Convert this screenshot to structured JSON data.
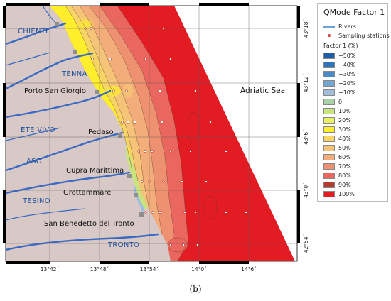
{
  "legend": {
    "title": "QMode Factor 1",
    "rivers_label": "Rivers",
    "stations_label": "Sampling stations",
    "factor_label": "Factor 1 (%)",
    "classes": [
      {
        "label": "−50%",
        "color": "#1f5da8"
      },
      {
        "label": "−40%",
        "color": "#2d74b8"
      },
      {
        "label": "−30%",
        "color": "#4a8ac6"
      },
      {
        "label": "−20%",
        "color": "#74a6d2"
      },
      {
        "label": "−10%",
        "color": "#9fbedc"
      },
      {
        "label": "0",
        "color": "#a7d1a9"
      },
      {
        "label": "10%",
        "color": "#c9e37f"
      },
      {
        "label": "20%",
        "color": "#e9f062"
      },
      {
        "label": "30%",
        "color": "#ffee2c"
      },
      {
        "label": "40%",
        "color": "#f7d466"
      },
      {
        "label": "50%",
        "color": "#f6c478"
      },
      {
        "label": "60%",
        "color": "#f3ad7a"
      },
      {
        "label": "70%",
        "color": "#ee9171"
      },
      {
        "label": "80%",
        "color": "#ea6760"
      },
      {
        "label": "90%",
        "color": "#b13d31"
      },
      {
        "label": "100%",
        "color": "#e31c24"
      }
    ]
  },
  "map": {
    "land_color": "#d8c9c6",
    "river_color": "#3a6ac4",
    "sea_label": "Adriatic Sea",
    "rivers": [
      "CHIENTI",
      "TENNA",
      "ETE VIVO",
      "ASO",
      "TESINO",
      "TRONTO"
    ],
    "towns": [
      "Porto San Giorgio",
      "Pedaso",
      "Cupra Marittima",
      "Grottammare",
      "San Benedetto del Tronto"
    ],
    "lon_ticks": [
      "13°42´",
      "13°48´",
      "13°54´",
      "14°0´",
      "14°6´"
    ],
    "lat_ticks": [
      "43°18´",
      "43°12´",
      "43°6´",
      "43°0´",
      "42°54´"
    ]
  },
  "caption": "(b)"
}
